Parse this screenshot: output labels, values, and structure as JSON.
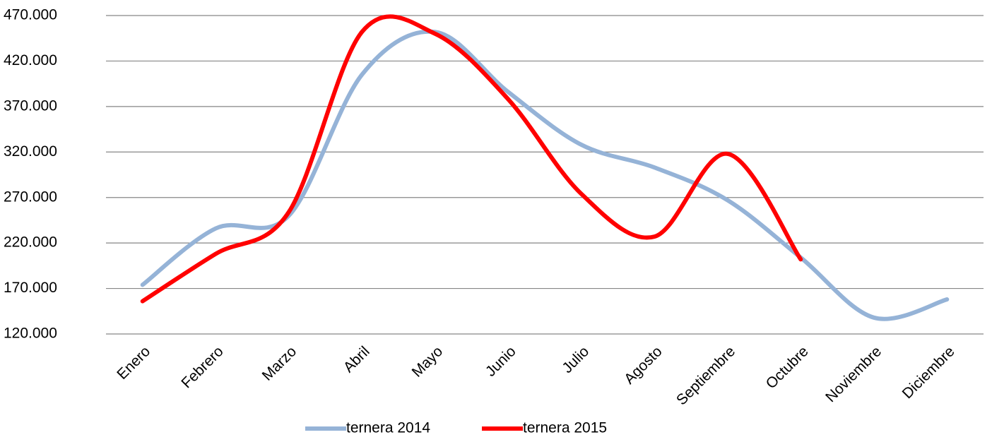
{
  "chart_data": {
    "type": "line",
    "categories": [
      "Enero",
      "Febrero",
      "Marzo",
      "Abril",
      "Mayo",
      "Junio",
      "Julio",
      "Agosto",
      "Septiembre",
      "Octubre",
      "Noviembre",
      "Diciembre"
    ],
    "series": [
      {
        "name": "ternera 2014",
        "color": "#95b3d7",
        "values": [
          174000,
          236000,
          250000,
          405000,
          452000,
          386000,
          328000,
          303000,
          267000,
          204000,
          138000,
          158000
        ]
      },
      {
        "name": "ternera 2015",
        "color": "#ff0000",
        "values": [
          156000,
          208000,
          254000,
          452000,
          450000,
          378000,
          274000,
          227000,
          318000,
          202000,
          null,
          null
        ]
      }
    ],
    "ylim": [
      120000,
      470000
    ],
    "yticks": [
      {
        "value": 120000,
        "label": "120.000"
      },
      {
        "value": 170000,
        "label": "170.000"
      },
      {
        "value": 220000,
        "label": "220.000"
      },
      {
        "value": 270000,
        "label": "270.000"
      },
      {
        "value": 320000,
        "label": "320.000"
      },
      {
        "value": 370000,
        "label": "370.000"
      },
      {
        "value": 420000,
        "label": "420.000"
      },
      {
        "value": 470000,
        "label": "470.000"
      }
    ],
    "grid": true,
    "legend": "bottom"
  }
}
